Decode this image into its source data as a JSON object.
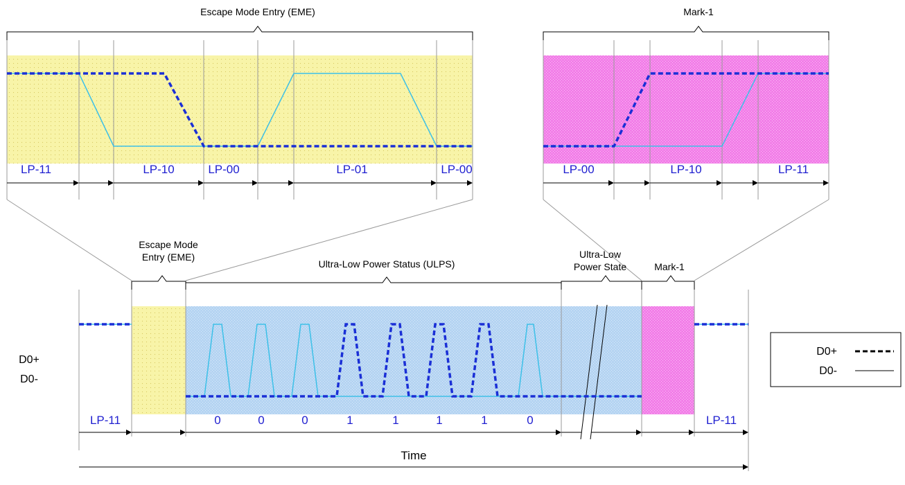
{
  "labels": {
    "eme_top_title": "Escape Mode Entry (EME)",
    "mark_top_title": "Mark-1",
    "eme_small_line1": "Escape Mode",
    "eme_small_line2": "Entry (EME)",
    "ulps_title": "Ultra-Low Power Status (ULPS)",
    "ulp_state_line1": "Ultra-Low",
    "ulp_state_line2": "Power State",
    "mark_small_title": "Mark-1",
    "d0_plus": "D0+",
    "d0_minus": "D0-",
    "time": "Time"
  },
  "eme_states": [
    "LP-11",
    "LP-10",
    "LP-00",
    "LP-01",
    "LP-00"
  ],
  "mark_states": [
    "LP-00",
    "LP-10",
    "LP-11"
  ],
  "bottom_states": {
    "left": "LP-11",
    "right": "LP-11"
  },
  "ulps_bits": [
    "0",
    "0",
    "0",
    "1",
    "1",
    "1",
    "1",
    "0"
  ],
  "legend": [
    {
      "label": "D0+",
      "style": "dashed"
    },
    {
      "label": "D0-",
      "style": "solid"
    }
  ],
  "colors": {
    "eme_fill": "#f8f4a8",
    "mark_fill": "#f27ee8",
    "ulps_fill": "#b5d4f2",
    "d0_plus": "#1a2fd6",
    "d0_minus": "#3cc0e8",
    "label_blue": "#1f1fd0"
  }
}
